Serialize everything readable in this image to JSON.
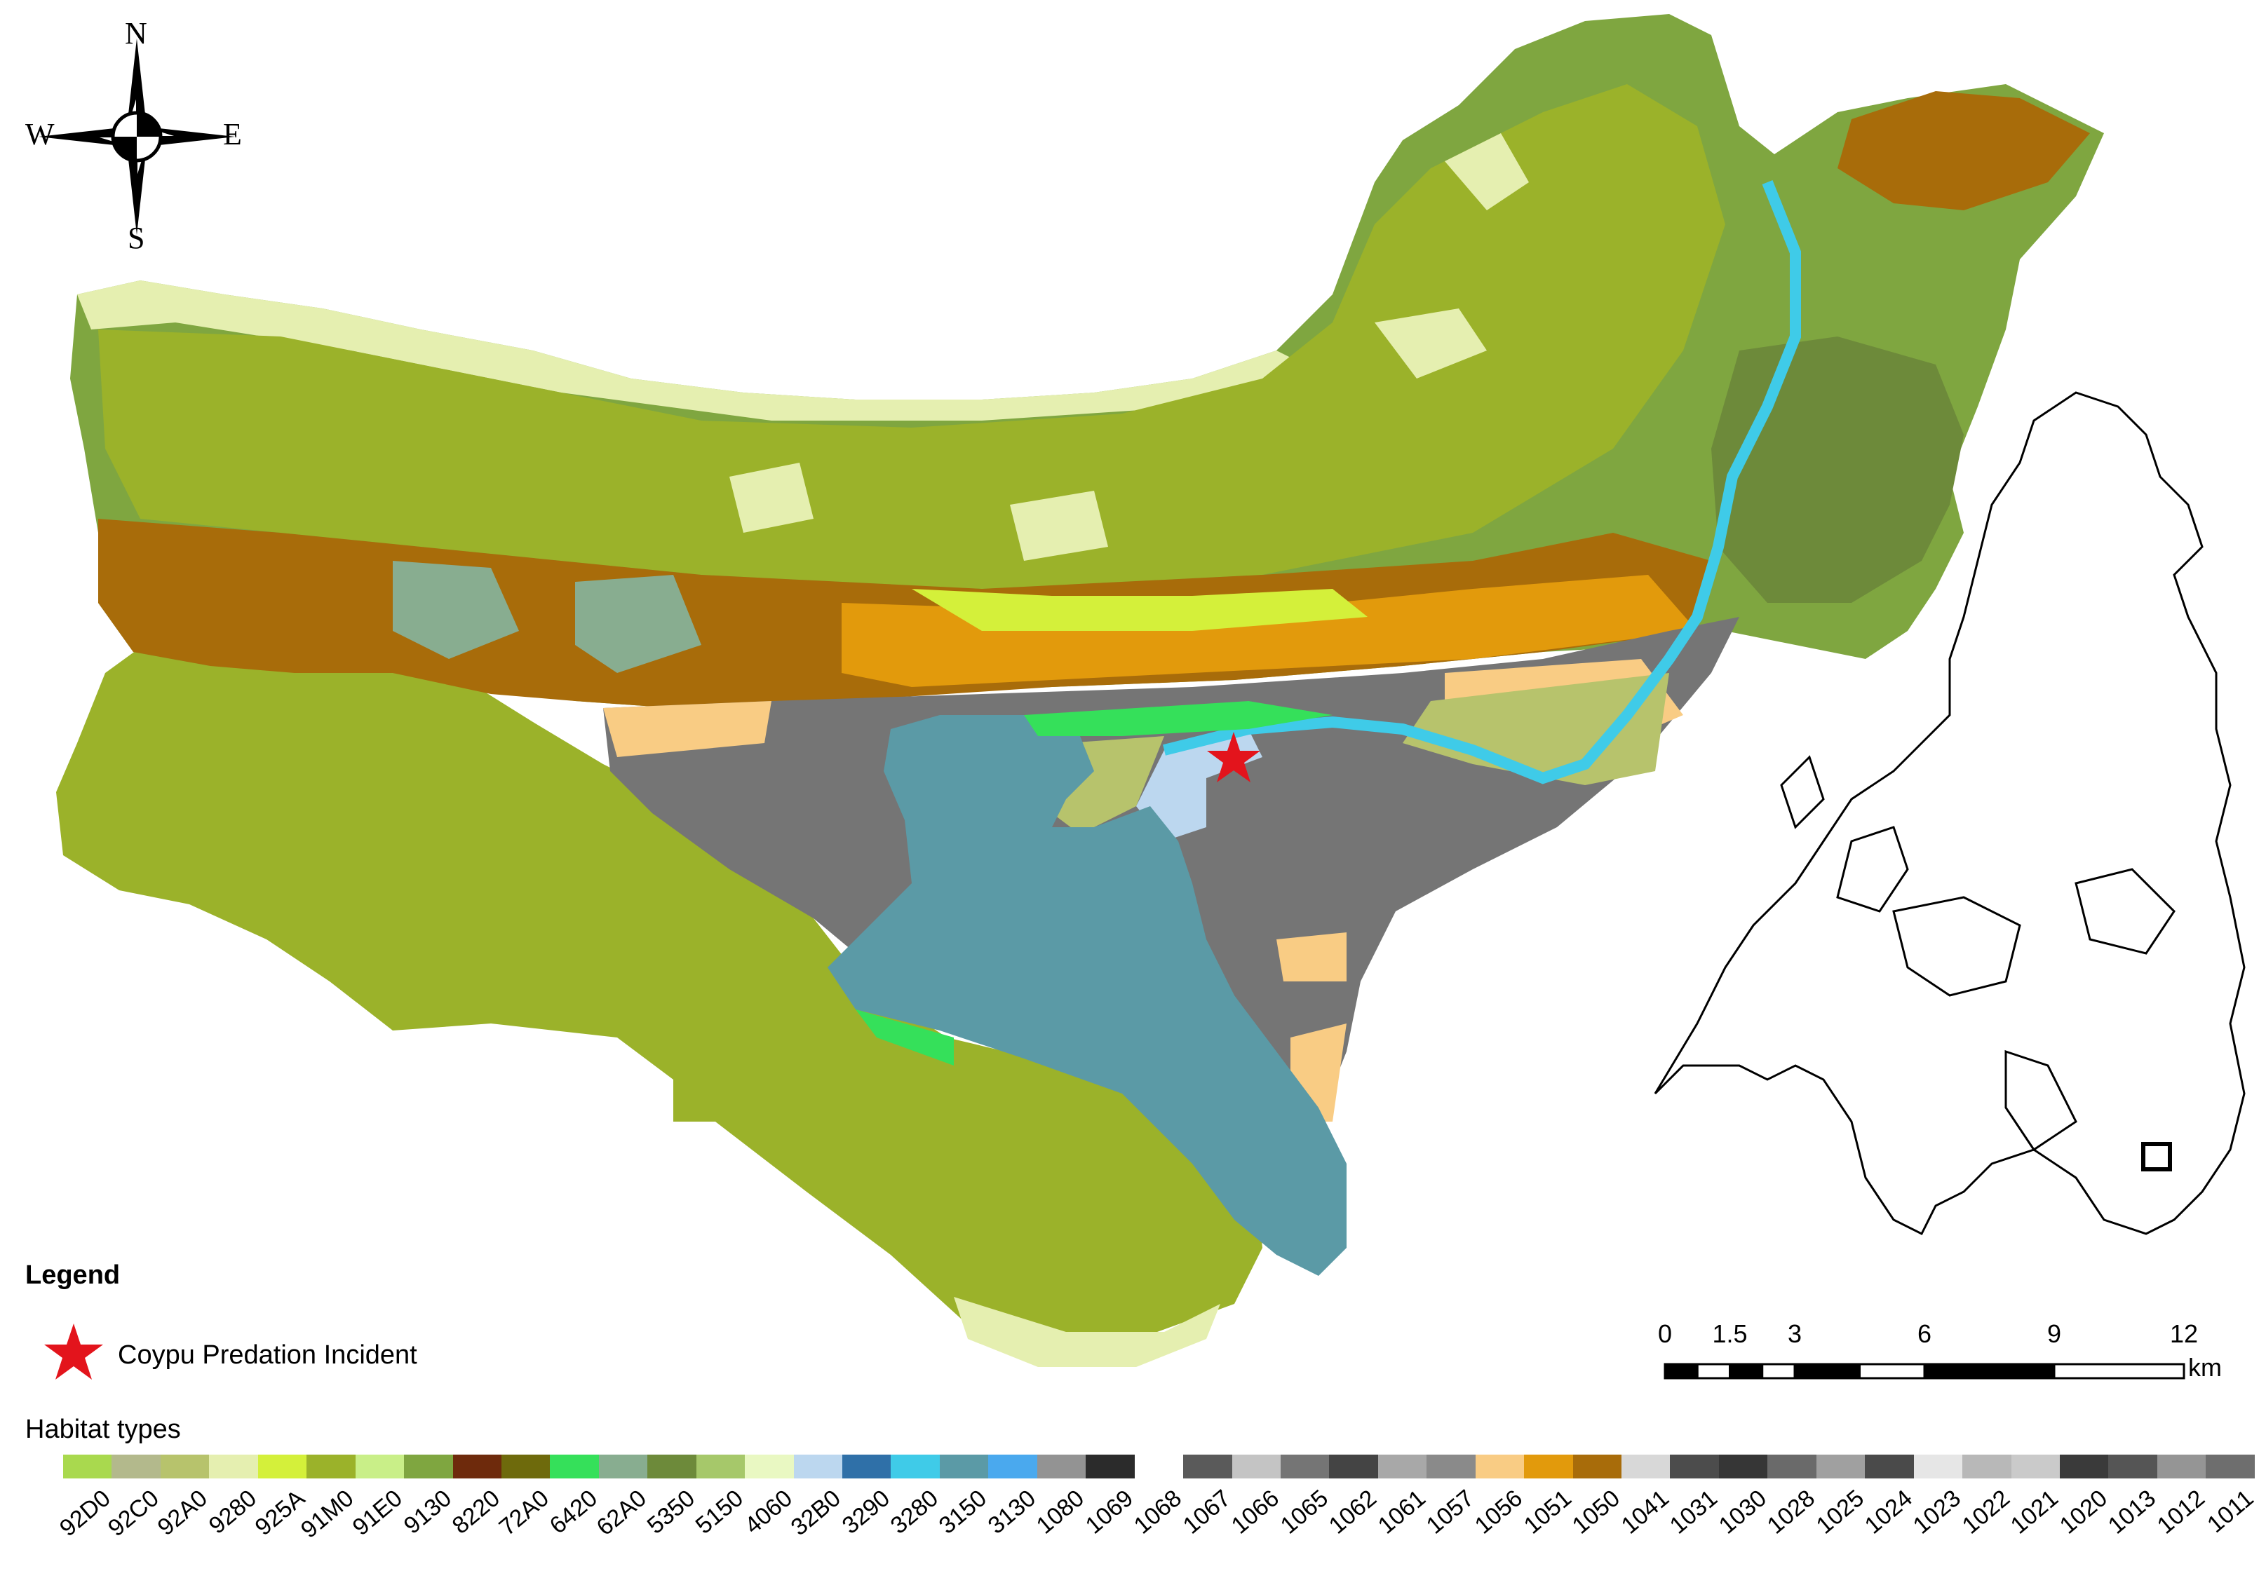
{
  "compass": {
    "n": "N",
    "s": "S",
    "w": "W",
    "e": "E"
  },
  "legend": {
    "title": "Legend",
    "incident_label": "Coypu Predation Incident",
    "habitat_title": "Habitat types"
  },
  "habitats": [
    {
      "code": "92D0",
      "color": "#a9d94e"
    },
    {
      "code": "92C0",
      "color": "#b3b98c"
    },
    {
      "code": "92A0",
      "color": "#b7c36c"
    },
    {
      "code": "9280",
      "color": "#e5efb0"
    },
    {
      "code": "925A",
      "color": "#d4f03a"
    },
    {
      "code": "91M0",
      "color": "#9bb22a"
    },
    {
      "code": "91E0",
      "color": "#c9ef88"
    },
    {
      "code": "9130",
      "color": "#7fa640"
    },
    {
      "code": "8220",
      "color": "#6e2a0c"
    },
    {
      "code": "72A0",
      "color": "#6e6a0c"
    },
    {
      "code": "6420",
      "color": "#35e05a"
    },
    {
      "code": "62A0",
      "color": "#88ad90"
    },
    {
      "code": "5350",
      "color": "#6d8a3a"
    },
    {
      "code": "5150",
      "color": "#a6c86a"
    },
    {
      "code": "4060",
      "color": "#e9f8c2"
    },
    {
      "code": "32B0",
      "color": "#bcd7ef"
    },
    {
      "code": "3290",
      "color": "#2f70a8"
    },
    {
      "code": "3280",
      "color": "#3fcbe8"
    },
    {
      "code": "3150",
      "color": "#5b9aa6"
    },
    {
      "code": "3130",
      "color": "#4aa9ee"
    },
    {
      "code": "1080",
      "color": "#939393"
    },
    {
      "code": "1069",
      "color": "#2b2b2b"
    },
    {
      "code": "1068",
      "color": "#ffffff"
    },
    {
      "code": "1067",
      "color": "#5a5a5a"
    },
    {
      "code": "1066",
      "color": "#c4c4c4"
    },
    {
      "code": "1065",
      "color": "#757575"
    },
    {
      "code": "1062",
      "color": "#444444"
    },
    {
      "code": "1061",
      "color": "#a8a8a8"
    },
    {
      "code": "1057",
      "color": "#8a8a8a"
    },
    {
      "code": "1056",
      "color": "#f9cc84"
    },
    {
      "code": "1051",
      "color": "#e29a0c"
    },
    {
      "code": "1050",
      "color": "#a86c0a"
    },
    {
      "code": "1041",
      "color": "#d8d8d8"
    },
    {
      "code": "1031",
      "color": "#4c4c4c"
    },
    {
      "code": "1030",
      "color": "#363636"
    },
    {
      "code": "1028",
      "color": "#6a6a6a"
    },
    {
      "code": "1025",
      "color": "#a0a0a0"
    },
    {
      "code": "1024",
      "color": "#4a4a4a"
    },
    {
      "code": "1023",
      "color": "#e6e6e6"
    },
    {
      "code": "1022",
      "color": "#b8b8b8"
    },
    {
      "code": "1021",
      "color": "#cacaca"
    },
    {
      "code": "1020",
      "color": "#3a3a3a"
    },
    {
      "code": "1013",
      "color": "#555555"
    },
    {
      "code": "1012",
      "color": "#959595"
    },
    {
      "code": "1011",
      "color": "#6e6e6e"
    }
  ],
  "scale": {
    "tick_labels": [
      "0",
      "1.5",
      "3",
      "6",
      "9",
      "12"
    ],
    "tick_values_km": [
      0,
      1.5,
      3,
      6,
      9,
      12
    ],
    "unit": "km"
  }
}
